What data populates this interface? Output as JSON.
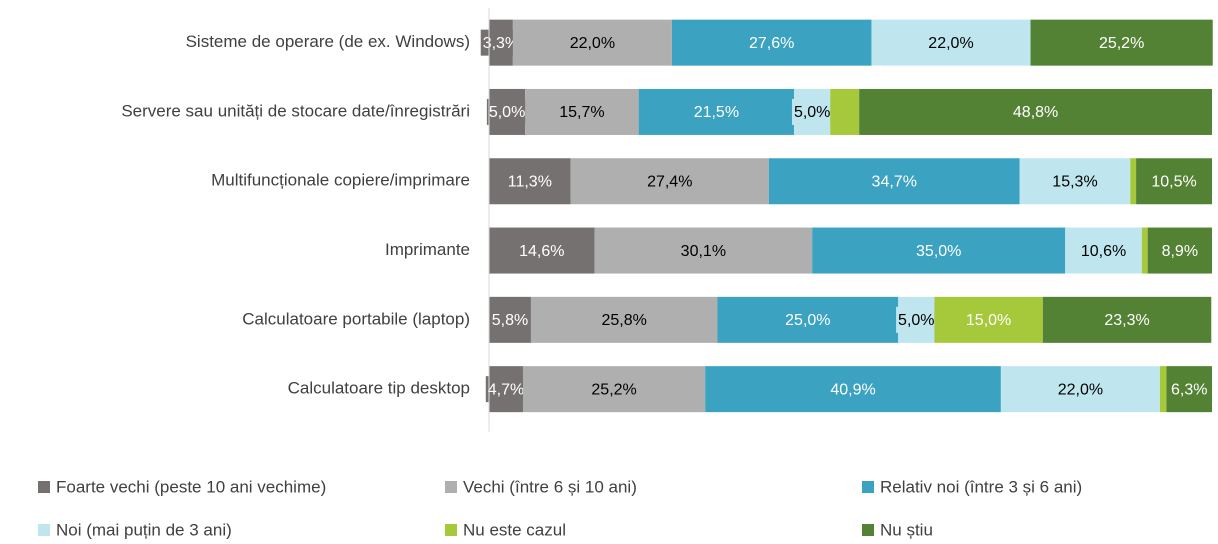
{
  "chart_data": {
    "type": "stacked-bar-horizontal",
    "categories": [
      "Sisteme de operare (de ex. Windows)",
      "Servere sau unități de stocare date/înregistrări",
      "Multifuncționale copiere/imprimare",
      "Imprimante",
      "Calculatoare portabile (laptop)",
      "Calculatoare tip desktop"
    ],
    "xlim": [
      0,
      100
    ],
    "legend": "bottom",
    "series": [
      {
        "name": "Foarte vechi (peste 10 ani vechime)",
        "color": "#767171",
        "values": [
          3.3,
          5.0,
          11.3,
          14.6,
          5.8,
          4.7
        ],
        "value_labels": [
          "3,3%",
          "5,0%",
          "11,3%",
          "14,6%",
          "5,8%",
          "4,7%"
        ]
      },
      {
        "name": "Vechi (între 6 și 10 ani)",
        "color": "#afafaf",
        "values": [
          22.0,
          15.7,
          27.4,
          30.1,
          25.8,
          25.2
        ],
        "value_labels": [
          "22,0%",
          "15,7%",
          "27,4%",
          "30,1%",
          "25,8%",
          "25,2%"
        ]
      },
      {
        "name": "Relativ noi (între 3 și 6 ani)",
        "color": "#3ba3c1",
        "values": [
          27.6,
          21.5,
          34.7,
          35.0,
          25.0,
          40.9
        ],
        "value_labels": [
          "27,6%",
          "21,5%",
          "34,7%",
          "35,0%",
          "25,0%",
          "40,9%"
        ]
      },
      {
        "name": "Noi (mai puțin de 3 ani)",
        "color": "#bfe6ef",
        "values": [
          22.0,
          5.0,
          15.3,
          10.6,
          5.0,
          22.0
        ],
        "value_labels": [
          "22,0%",
          "5,0%",
          "15,3%",
          "10,6%",
          "5,0%",
          "22,0%"
        ]
      },
      {
        "name": "Nu este cazul",
        "color": "#a5c93a",
        "values": [
          0,
          4.0,
          0.8,
          0.8,
          15.0,
          0.9
        ],
        "value_labels": [
          null,
          null,
          null,
          null,
          "15,0%",
          null
        ]
      },
      {
        "name": "Nu știu",
        "color": "#548235",
        "values": [
          25.2,
          48.8,
          10.5,
          8.9,
          23.3,
          6.3
        ],
        "value_labels": [
          "25,2%",
          "48,8%",
          "10,5%",
          "8,9%",
          "23,3%",
          "6,3%"
        ]
      }
    ]
  }
}
